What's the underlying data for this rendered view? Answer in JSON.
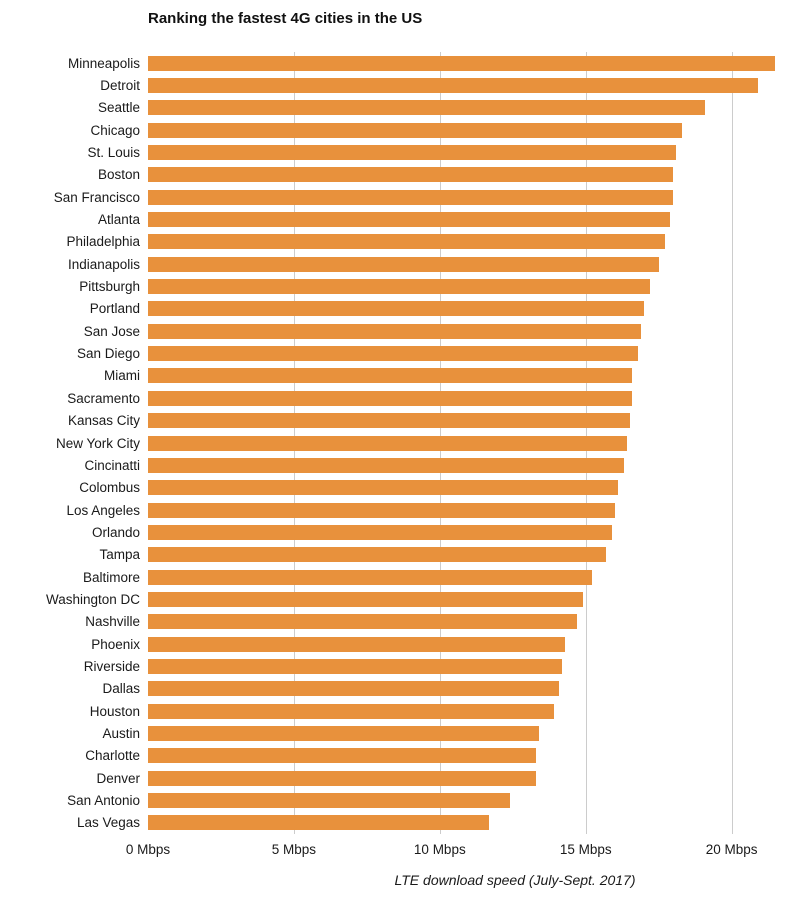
{
  "title": "Ranking the fastest 4G cities in the US",
  "footer": "LTE download speed (July-Sept. 2017)",
  "colors": {
    "bar": "#E8913C",
    "grid": "#cccccc",
    "text": "#1a1a1a"
  },
  "chart_data": {
    "type": "bar",
    "orientation": "horizontal",
    "title": "Ranking the fastest 4G cities in the US",
    "xlabel": "LTE download speed (July-Sept. 2017)",
    "ylabel": "",
    "xlim": [
      0,
      22
    ],
    "x_ticks": [
      0,
      5,
      10,
      15,
      20
    ],
    "x_tick_labels": [
      "0 Mbps",
      "5 Mbps",
      "10 Mbps",
      "15 Mbps",
      "20 Mbps"
    ],
    "grid": true,
    "legend": false,
    "unit": "Mbps",
    "categories": [
      "Minneapolis",
      "Detroit",
      "Seattle",
      "Chicago",
      "St. Louis",
      "Boston",
      "San Francisco",
      "Atlanta",
      "Philadelphia",
      "Indianapolis",
      "Pittsburgh",
      "Portland",
      "San Jose",
      "San Diego",
      "Miami",
      "Sacramento",
      "Kansas City",
      "New York City",
      "Cincinatti",
      "Colombus",
      "Los Angeles",
      "Orlando",
      "Tampa",
      "Baltimore",
      "Washington DC",
      "Nashville",
      "Phoenix",
      "Riverside",
      "Dallas",
      "Houston",
      "Austin",
      "Charlotte",
      "Denver",
      "San Antonio",
      "Las Vegas"
    ],
    "values": [
      21.5,
      20.9,
      19.1,
      18.3,
      18.1,
      18.0,
      18.0,
      17.9,
      17.7,
      17.5,
      17.2,
      17.0,
      16.9,
      16.8,
      16.6,
      16.6,
      16.5,
      16.4,
      16.3,
      16.1,
      16.0,
      15.9,
      15.7,
      15.2,
      14.9,
      14.7,
      14.3,
      14.2,
      14.1,
      13.9,
      13.4,
      13.3,
      13.3,
      12.4,
      11.7
    ]
  }
}
